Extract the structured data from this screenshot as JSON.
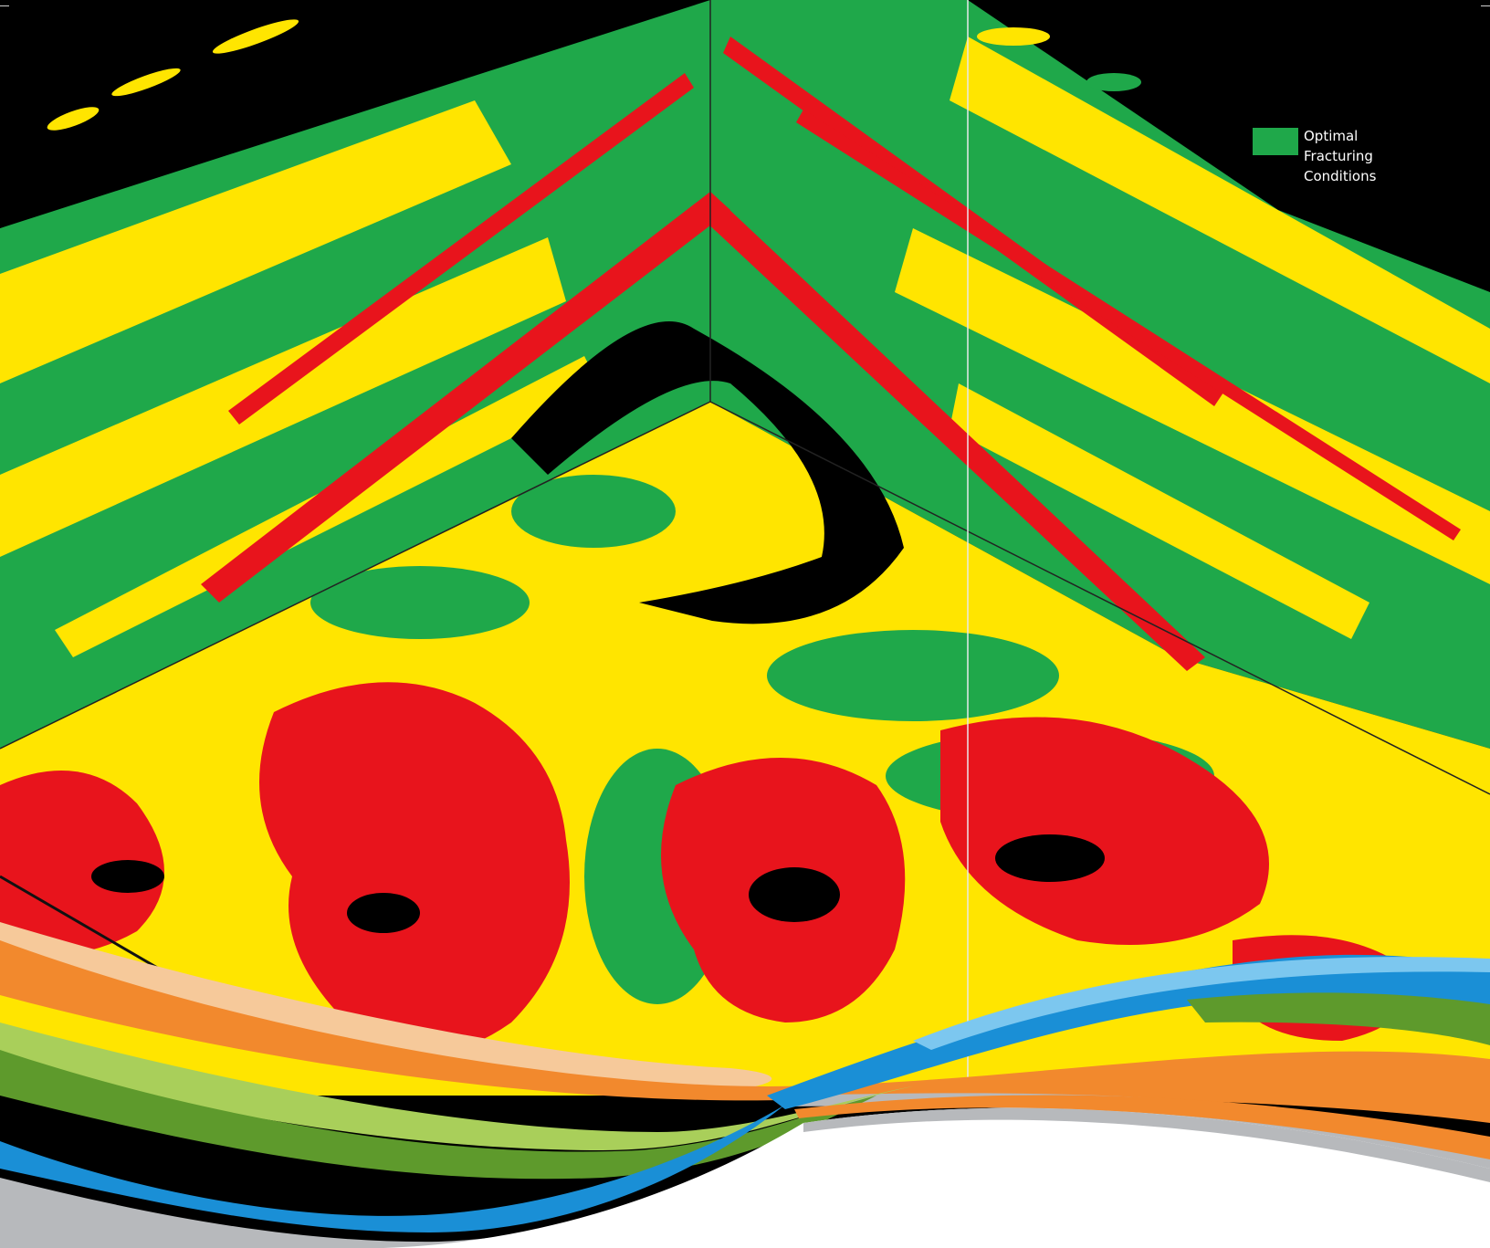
{
  "legend": {
    "label": "Optimal\nFracturing\nConditions",
    "swatch_color": "#1fa84a"
  },
  "palette": {
    "black": "#000000",
    "green": "#1fa84a",
    "yellow": "#ffe500",
    "red": "#e8141c",
    "orange": "#f2892d",
    "light_green": "#7aab3a",
    "blue": "#1a8fd6",
    "grey": "#b7b9bc",
    "peach": "#f6c99a"
  }
}
